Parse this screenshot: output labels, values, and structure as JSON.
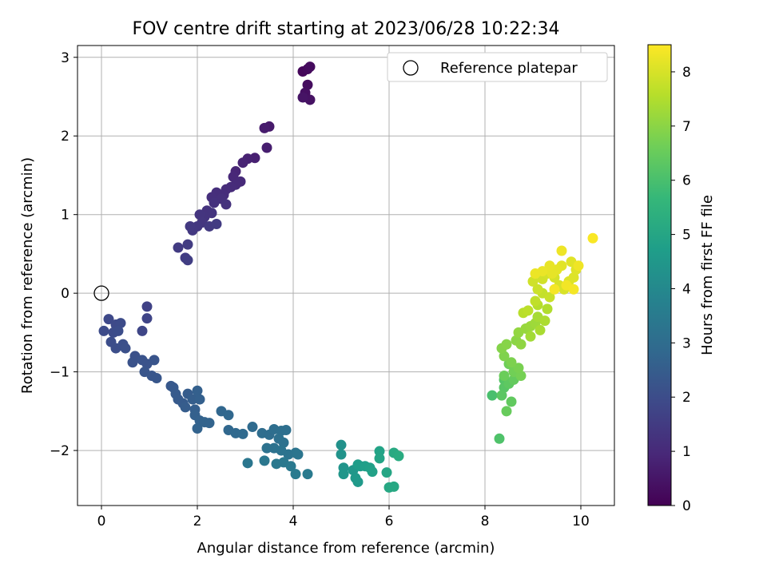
{
  "chart_data": {
    "type": "scatter",
    "title": "FOV centre drift starting at 2023/06/28 10:22:34",
    "xlabel": "Angular distance from reference (arcmin)",
    "ylabel": "Rotation from reference (arcmin)",
    "xlim": [
      -0.5,
      10.7
    ],
    "ylim": [
      -2.7,
      3.15
    ],
    "xticks": [
      0,
      2,
      4,
      6,
      8,
      10
    ],
    "yticks": [
      -2,
      -1,
      0,
      1,
      2,
      3
    ],
    "grid": true,
    "legend": {
      "position": "top-right",
      "entries": [
        "Reference platepar"
      ]
    },
    "reference_point": {
      "x": 0,
      "y": 0,
      "label": "Reference platepar"
    },
    "colorbar": {
      "label": "Hours from first FF file",
      "colormap": "viridis",
      "range": [
        0,
        8.5
      ],
      "ticks": [
        0,
        1,
        2,
        3,
        4,
        5,
        6,
        7,
        8
      ]
    },
    "colormap_stops": [
      "#440154",
      "#482878",
      "#3e4989",
      "#31688e",
      "#26828e",
      "#1f9e89",
      "#35b779",
      "#6ece58",
      "#b5de2b",
      "#fde725"
    ],
    "points": [
      [
        4.2,
        2.82,
        0.15
      ],
      [
        4.3,
        2.85,
        0.2
      ],
      [
        4.35,
        2.88,
        0.25
      ],
      [
        4.3,
        2.65,
        0.3
      ],
      [
        4.25,
        2.55,
        0.35
      ],
      [
        4.35,
        2.46,
        0.4
      ],
      [
        4.2,
        2.49,
        0.45
      ],
      [
        3.5,
        2.12,
        0.6
      ],
      [
        3.4,
        2.1,
        0.65
      ],
      [
        3.45,
        1.85,
        0.7
      ],
      [
        3.2,
        1.72,
        0.75
      ],
      [
        3.05,
        1.71,
        0.8
      ],
      [
        2.95,
        1.66,
        0.85
      ],
      [
        2.8,
        1.55,
        0.9
      ],
      [
        2.75,
        1.48,
        0.95
      ],
      [
        2.9,
        1.42,
        1.0
      ],
      [
        2.8,
        1.38,
        1.02
      ],
      [
        2.7,
        1.35,
        1.05
      ],
      [
        2.6,
        1.32,
        1.08
      ],
      [
        2.55,
        1.25,
        1.1
      ],
      [
        2.4,
        1.28,
        1.12
      ],
      [
        2.3,
        1.22,
        1.15
      ],
      [
        2.5,
        1.2,
        1.18
      ],
      [
        2.35,
        1.15,
        1.2
      ],
      [
        2.6,
        1.13,
        1.22
      ],
      [
        2.2,
        1.05,
        1.25
      ],
      [
        2.3,
        1.02,
        1.28
      ],
      [
        2.15,
        0.97,
        1.3
      ],
      [
        2.05,
        1.0,
        1.32
      ],
      [
        2.1,
        0.9,
        1.35
      ],
      [
        2.0,
        0.85,
        1.38
      ],
      [
        1.9,
        0.8,
        1.4
      ],
      [
        1.85,
        0.85,
        1.42
      ],
      [
        2.25,
        0.85,
        1.45
      ],
      [
        2.4,
        0.88,
        1.48
      ],
      [
        1.6,
        0.58,
        1.5
      ],
      [
        1.8,
        0.62,
        1.52
      ],
      [
        1.75,
        0.45,
        1.55
      ],
      [
        1.8,
        0.42,
        1.58
      ],
      [
        0.95,
        -0.17,
        1.7
      ],
      [
        0.95,
        -0.32,
        1.75
      ],
      [
        0.85,
        -0.48,
        1.8
      ],
      [
        0.15,
        -0.33,
        1.9
      ],
      [
        0.3,
        -0.4,
        1.92
      ],
      [
        0.4,
        -0.38,
        1.94
      ],
      [
        0.05,
        -0.48,
        1.96
      ],
      [
        0.25,
        -0.5,
        1.98
      ],
      [
        0.35,
        -0.48,
        2.0
      ],
      [
        0.2,
        -0.62,
        2.02
      ],
      [
        0.3,
        -0.7,
        2.05
      ],
      [
        0.45,
        -0.65,
        2.08
      ],
      [
        0.5,
        -0.7,
        2.1
      ],
      [
        0.7,
        -0.8,
        2.12
      ],
      [
        0.65,
        -0.88,
        2.15
      ],
      [
        0.85,
        -0.85,
        2.18
      ],
      [
        0.95,
        -0.9,
        2.2
      ],
      [
        1.1,
        -0.85,
        2.22
      ],
      [
        0.9,
        -1.0,
        2.25
      ],
      [
        1.05,
        -1.05,
        2.28
      ],
      [
        1.15,
        -1.08,
        2.3
      ],
      [
        1.45,
        -1.18,
        2.35
      ],
      [
        1.5,
        -1.2,
        2.38
      ],
      [
        1.55,
        -1.28,
        2.4
      ],
      [
        1.6,
        -1.35,
        2.42
      ],
      [
        1.7,
        -1.4,
        2.45
      ],
      [
        1.8,
        -1.28,
        2.48
      ],
      [
        1.75,
        -1.45,
        2.5
      ],
      [
        1.9,
        -1.35,
        2.52
      ],
      [
        1.95,
        -1.48,
        2.55
      ],
      [
        2.0,
        -1.24,
        2.58
      ],
      [
        2.05,
        -1.35,
        2.6
      ],
      [
        1.95,
        -1.55,
        2.62
      ],
      [
        2.05,
        -1.62,
        2.65
      ],
      [
        2.0,
        -1.72,
        2.68
      ],
      [
        2.15,
        -1.64,
        2.7
      ],
      [
        2.25,
        -1.65,
        2.72
      ],
      [
        2.5,
        -1.5,
        2.8
      ],
      [
        2.65,
        -1.55,
        2.82
      ],
      [
        2.65,
        -1.74,
        2.85
      ],
      [
        2.8,
        -1.78,
        2.88
      ],
      [
        2.95,
        -1.79,
        2.9
      ],
      [
        3.15,
        -1.7,
        2.95
      ],
      [
        3.35,
        -1.78,
        3.0
      ],
      [
        3.5,
        -1.8,
        3.02
      ],
      [
        3.6,
        -1.73,
        3.05
      ],
      [
        3.75,
        -1.75,
        3.08
      ],
      [
        3.85,
        -1.74,
        3.1
      ],
      [
        3.7,
        -1.85,
        3.12
      ],
      [
        3.8,
        -1.9,
        3.15
      ],
      [
        3.45,
        -1.97,
        3.18
      ],
      [
        3.6,
        -1.97,
        3.2
      ],
      [
        3.75,
        -2.0,
        3.22
      ],
      [
        3.9,
        -2.05,
        3.25
      ],
      [
        4.05,
        -2.03,
        3.28
      ],
      [
        4.1,
        -2.05,
        3.3
      ],
      [
        3.05,
        -2.16,
        3.35
      ],
      [
        3.4,
        -2.13,
        3.38
      ],
      [
        3.65,
        -2.17,
        3.4
      ],
      [
        3.8,
        -2.15,
        3.42
      ],
      [
        3.95,
        -2.2,
        3.45
      ],
      [
        4.05,
        -2.3,
        3.48
      ],
      [
        4.3,
        -2.3,
        3.5
      ],
      [
        5.0,
        -1.93,
        4.3
      ],
      [
        5.0,
        -2.05,
        4.35
      ],
      [
        5.05,
        -2.22,
        4.4
      ],
      [
        5.05,
        -2.3,
        4.45
      ],
      [
        5.25,
        -2.25,
        4.5
      ],
      [
        5.3,
        -2.35,
        4.55
      ],
      [
        5.35,
        -2.4,
        4.6
      ],
      [
        5.4,
        -2.2,
        4.65
      ],
      [
        5.35,
        -2.18,
        4.7
      ],
      [
        5.5,
        -2.2,
        4.75
      ],
      [
        5.6,
        -2.22,
        4.8
      ],
      [
        5.65,
        -2.27,
        4.85
      ],
      [
        5.8,
        -2.01,
        4.9
      ],
      [
        5.8,
        -2.1,
        4.95
      ],
      [
        5.95,
        -2.28,
        5.0
      ],
      [
        6.0,
        -2.47,
        5.05
      ],
      [
        6.1,
        -2.46,
        5.1
      ],
      [
        6.1,
        -2.03,
        5.15
      ],
      [
        6.2,
        -2.07,
        5.2
      ],
      [
        8.15,
        -1.3,
        6.0
      ],
      [
        8.3,
        -1.85,
        6.1
      ],
      [
        8.4,
        -1.1,
        6.2
      ],
      [
        8.4,
        -1.2,
        6.25
      ],
      [
        8.35,
        -1.3,
        6.3
      ],
      [
        8.5,
        -1.15,
        6.35
      ],
      [
        8.55,
        -1.38,
        6.4
      ],
      [
        8.6,
        -1.1,
        6.45
      ],
      [
        8.45,
        -1.5,
        6.5
      ],
      [
        8.4,
        -1.05,
        6.55
      ],
      [
        8.5,
        -0.9,
        6.6
      ],
      [
        8.6,
        -1.0,
        6.65
      ],
      [
        8.75,
        -1.05,
        6.7
      ],
      [
        8.7,
        -0.95,
        6.75
      ],
      [
        8.55,
        -0.88,
        6.8
      ],
      [
        8.4,
        -0.8,
        6.85
      ],
      [
        8.35,
        -0.7,
        6.9
      ],
      [
        8.45,
        -0.65,
        6.95
      ],
      [
        8.65,
        -0.6,
        7.0
      ],
      [
        8.75,
        -0.65,
        7.05
      ],
      [
        8.7,
        -0.5,
        7.1
      ],
      [
        8.85,
        -0.45,
        7.15
      ],
      [
        8.95,
        -0.42,
        7.2
      ],
      [
        9.05,
        -0.38,
        7.25
      ],
      [
        8.95,
        -0.55,
        7.3
      ],
      [
        9.1,
        -0.3,
        7.35
      ],
      [
        9.15,
        -0.47,
        7.4
      ],
      [
        9.25,
        -0.35,
        7.45
      ],
      [
        9.3,
        -0.2,
        7.5
      ],
      [
        9.1,
        -0.15,
        7.55
      ],
      [
        8.8,
        -0.25,
        7.6
      ],
      [
        8.9,
        -0.22,
        7.65
      ],
      [
        9.05,
        -0.1,
        7.7
      ],
      [
        9.2,
        0.0,
        7.75
      ],
      [
        9.35,
        -0.05,
        7.8
      ],
      [
        9.1,
        0.05,
        7.85
      ],
      [
        9.0,
        0.15,
        7.9
      ],
      [
        9.2,
        0.18,
        7.92
      ],
      [
        9.3,
        0.25,
        7.95
      ],
      [
        9.45,
        0.2,
        7.98
      ],
      [
        9.55,
        0.1,
        8.0
      ],
      [
        9.65,
        0.05,
        8.02
      ],
      [
        9.75,
        0.15,
        8.05
      ],
      [
        9.85,
        0.2,
        8.08
      ],
      [
        9.9,
        0.3,
        8.1
      ],
      [
        9.8,
        0.4,
        8.12
      ],
      [
        9.6,
        0.35,
        8.15
      ],
      [
        9.5,
        0.3,
        8.18
      ],
      [
        9.4,
        0.25,
        8.2
      ],
      [
        9.35,
        0.35,
        8.22
      ],
      [
        9.2,
        0.28,
        8.25
      ],
      [
        9.05,
        0.25,
        8.28
      ],
      [
        9.6,
        0.54,
        8.3
      ],
      [
        9.95,
        0.35,
        8.32
      ],
      [
        9.7,
        0.1,
        8.35
      ],
      [
        9.85,
        0.05,
        8.38
      ],
      [
        9.45,
        0.05,
        8.4
      ],
      [
        10.25,
        0.7,
        8.45
      ]
    ]
  }
}
